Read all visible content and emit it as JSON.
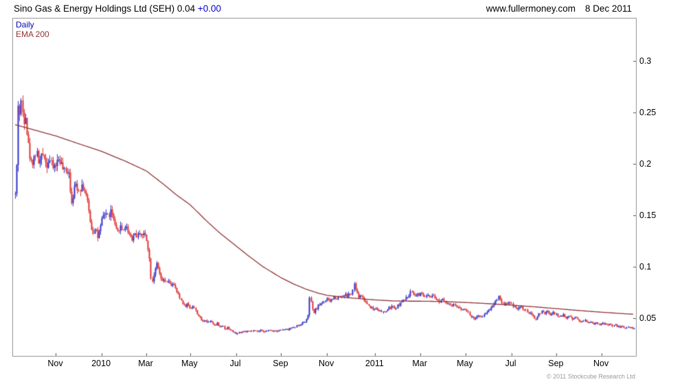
{
  "header": {
    "title": "Sino Gas & Energy Holdings Ltd (SEH) 0.04",
    "change": "+0.00",
    "website": "www.fullermoney.com",
    "date": "8 Dec 2011"
  },
  "legend": {
    "daily": "Daily",
    "ema": "EMA 200"
  },
  "footer": {
    "copyright": "© 2011 Stockcube Research Ltd"
  },
  "colors": {
    "up": "#2f2fc8",
    "down": "#e03030",
    "ema": "#8f3333",
    "quote_blue": "#0000cc",
    "legend_daily": "#0000bb",
    "border": "#999999",
    "tick": "#555555",
    "muted": "#999999"
  },
  "chart_data": {
    "type": "candlestick-with-ema",
    "title": "Sino Gas & Energy Holdings Ltd (SEH)",
    "last_price": "0.04",
    "change": "+0.00",
    "interval": "Daily",
    "overlay": "EMA 200",
    "x_axis": {
      "labels": [
        "Nov",
        "2010",
        "Mar",
        "May",
        "Jul",
        "Sep",
        "Nov",
        "2011",
        "Mar",
        "May",
        "Jul",
        "Sep",
        "Nov"
      ],
      "positions_t": [
        0.066,
        0.14,
        0.212,
        0.283,
        0.357,
        0.43,
        0.504,
        0.582,
        0.655,
        0.728,
        0.802,
        0.875,
        0.948
      ]
    },
    "y_axis": {
      "side": "right",
      "ticks": [
        0.3,
        0.25,
        0.2,
        0.15,
        0.1,
        0.05
      ],
      "range": [
        0.013,
        0.3413
      ]
    },
    "price_keypoints": [
      [
        0.0,
        0.17
      ],
      [
        0.003,
        0.205
      ],
      [
        0.005,
        0.27
      ],
      [
        0.007,
        0.248
      ],
      [
        0.01,
        0.262
      ],
      [
        0.013,
        0.24
      ],
      [
        0.016,
        0.252
      ],
      [
        0.019,
        0.228
      ],
      [
        0.022,
        0.212
      ],
      [
        0.026,
        0.2
      ],
      [
        0.03,
        0.206
      ],
      [
        0.034,
        0.212
      ],
      [
        0.038,
        0.2
      ],
      [
        0.042,
        0.206
      ],
      [
        0.046,
        0.212
      ],
      [
        0.05,
        0.198
      ],
      [
        0.055,
        0.205
      ],
      [
        0.06,
        0.196
      ],
      [
        0.066,
        0.2
      ],
      [
        0.071,
        0.206
      ],
      [
        0.076,
        0.196
      ],
      [
        0.081,
        0.19
      ],
      [
        0.086,
        0.196
      ],
      [
        0.09,
        0.162
      ],
      [
        0.094,
        0.172
      ],
      [
        0.098,
        0.18
      ],
      [
        0.103,
        0.175
      ],
      [
        0.108,
        0.18
      ],
      [
        0.113,
        0.172
      ],
      [
        0.117,
        0.16
      ],
      [
        0.121,
        0.146
      ],
      [
        0.125,
        0.132
      ],
      [
        0.129,
        0.14
      ],
      [
        0.133,
        0.128
      ],
      [
        0.137,
        0.136
      ],
      [
        0.141,
        0.148
      ],
      [
        0.146,
        0.153
      ],
      [
        0.15,
        0.148
      ],
      [
        0.154,
        0.154
      ],
      [
        0.158,
        0.147
      ],
      [
        0.161,
        0.138
      ],
      [
        0.165,
        0.132
      ],
      [
        0.169,
        0.14
      ],
      [
        0.173,
        0.135
      ],
      [
        0.177,
        0.14
      ],
      [
        0.181,
        0.136
      ],
      [
        0.185,
        0.131
      ],
      [
        0.189,
        0.127
      ],
      [
        0.193,
        0.133
      ],
      [
        0.197,
        0.129
      ],
      [
        0.201,
        0.134
      ],
      [
        0.205,
        0.13
      ],
      [
        0.209,
        0.132
      ],
      [
        0.212,
        0.127
      ],
      [
        0.215,
        0.117
      ],
      [
        0.218,
        0.1
      ],
      [
        0.22,
        0.082
      ],
      [
        0.223,
        0.091
      ],
      [
        0.226,
        0.099
      ],
      [
        0.229,
        0.102
      ],
      [
        0.232,
        0.094
      ],
      [
        0.235,
        0.089
      ],
      [
        0.238,
        0.084
      ],
      [
        0.241,
        0.088
      ],
      [
        0.244,
        0.083
      ],
      [
        0.247,
        0.086
      ],
      [
        0.25,
        0.081
      ],
      [
        0.254,
        0.084
      ],
      [
        0.258,
        0.079
      ],
      [
        0.262,
        0.074
      ],
      [
        0.266,
        0.069
      ],
      [
        0.27,
        0.065
      ],
      [
        0.274,
        0.061
      ],
      [
        0.278,
        0.064
      ],
      [
        0.283,
        0.059
      ],
      [
        0.287,
        0.062
      ],
      [
        0.291,
        0.057
      ],
      [
        0.295,
        0.053
      ],
      [
        0.299,
        0.049
      ],
      [
        0.303,
        0.046
      ],
      [
        0.307,
        0.049
      ],
      [
        0.311,
        0.045
      ],
      [
        0.315,
        0.048
      ],
      [
        0.319,
        0.045
      ],
      [
        0.323,
        0.042
      ],
      [
        0.327,
        0.045
      ],
      [
        0.331,
        0.041
      ],
      [
        0.335,
        0.043
      ],
      [
        0.339,
        0.039
      ],
      [
        0.343,
        0.041
      ],
      [
        0.348,
        0.038
      ],
      [
        0.353,
        0.036
      ],
      [
        0.357,
        0.0345
      ],
      [
        0.363,
        0.036
      ],
      [
        0.37,
        0.037
      ],
      [
        0.377,
        0.0365
      ],
      [
        0.384,
        0.0375
      ],
      [
        0.391,
        0.0365
      ],
      [
        0.398,
        0.0375
      ],
      [
        0.405,
        0.037
      ],
      [
        0.412,
        0.038
      ],
      [
        0.419,
        0.0375
      ],
      [
        0.426,
        0.038
      ],
      [
        0.433,
        0.0385
      ],
      [
        0.44,
        0.0385
      ],
      [
        0.446,
        0.04
      ],
      [
        0.452,
        0.0415
      ],
      [
        0.458,
        0.043
      ],
      [
        0.464,
        0.045
      ],
      [
        0.469,
        0.047
      ],
      [
        0.473,
        0.05
      ],
      [
        0.476,
        0.074
      ],
      [
        0.479,
        0.059
      ],
      [
        0.482,
        0.055
      ],
      [
        0.486,
        0.059
      ],
      [
        0.49,
        0.062
      ],
      [
        0.494,
        0.064
      ],
      [
        0.498,
        0.066
      ],
      [
        0.504,
        0.068
      ],
      [
        0.508,
        0.066
      ],
      [
        0.512,
        0.068
      ],
      [
        0.516,
        0.071
      ],
      [
        0.52,
        0.069
      ],
      [
        0.524,
        0.072
      ],
      [
        0.528,
        0.07
      ],
      [
        0.532,
        0.073
      ],
      [
        0.536,
        0.071
      ],
      [
        0.54,
        0.074
      ],
      [
        0.544,
        0.072
      ],
      [
        0.548,
        0.084
      ],
      [
        0.551,
        0.074
      ],
      [
        0.555,
        0.07
      ],
      [
        0.559,
        0.072
      ],
      [
        0.563,
        0.068
      ],
      [
        0.567,
        0.065
      ],
      [
        0.571,
        0.062
      ],
      [
        0.575,
        0.06
      ],
      [
        0.579,
        0.058
      ],
      [
        0.583,
        0.06
      ],
      [
        0.588,
        0.057
      ],
      [
        0.593,
        0.055
      ],
      [
        0.598,
        0.056
      ],
      [
        0.603,
        0.059
      ],
      [
        0.608,
        0.061
      ],
      [
        0.613,
        0.059
      ],
      [
        0.618,
        0.062
      ],
      [
        0.623,
        0.065
      ],
      [
        0.628,
        0.067
      ],
      [
        0.633,
        0.07
      ],
      [
        0.638,
        0.074
      ],
      [
        0.642,
        0.077
      ],
      [
        0.645,
        0.071
      ],
      [
        0.649,
        0.074
      ],
      [
        0.653,
        0.072
      ],
      [
        0.657,
        0.074
      ],
      [
        0.661,
        0.07
      ],
      [
        0.665,
        0.072
      ],
      [
        0.67,
        0.069
      ],
      [
        0.675,
        0.071
      ],
      [
        0.68,
        0.068
      ],
      [
        0.685,
        0.066
      ],
      [
        0.69,
        0.069
      ],
      [
        0.695,
        0.066
      ],
      [
        0.7,
        0.064
      ],
      [
        0.705,
        0.061
      ],
      [
        0.71,
        0.063
      ],
      [
        0.715,
        0.06
      ],
      [
        0.72,
        0.058
      ],
      [
        0.725,
        0.06
      ],
      [
        0.728,
        0.058
      ],
      [
        0.732,
        0.055
      ],
      [
        0.737,
        0.051
      ],
      [
        0.742,
        0.049
      ],
      [
        0.747,
        0.052
      ],
      [
        0.752,
        0.05
      ],
      [
        0.757,
        0.053
      ],
      [
        0.762,
        0.056
      ],
      [
        0.767,
        0.059
      ],
      [
        0.772,
        0.063
      ],
      [
        0.777,
        0.067
      ],
      [
        0.781,
        0.071
      ],
      [
        0.785,
        0.066
      ],
      [
        0.79,
        0.063
      ],
      [
        0.795,
        0.065
      ],
      [
        0.802,
        0.063
      ],
      [
        0.807,
        0.061
      ],
      [
        0.812,
        0.059
      ],
      [
        0.817,
        0.061
      ],
      [
        0.822,
        0.058
      ],
      [
        0.827,
        0.056
      ],
      [
        0.832,
        0.054
      ],
      [
        0.837,
        0.051
      ],
      [
        0.841,
        0.048
      ],
      [
        0.845,
        0.053
      ],
      [
        0.85,
        0.056
      ],
      [
        0.855,
        0.054
      ],
      [
        0.86,
        0.056
      ],
      [
        0.865,
        0.053
      ],
      [
        0.87,
        0.055
      ],
      [
        0.875,
        0.053
      ],
      [
        0.88,
        0.051
      ],
      [
        0.885,
        0.053
      ],
      [
        0.89,
        0.05
      ],
      [
        0.895,
        0.052
      ],
      [
        0.9,
        0.049
      ],
      [
        0.905,
        0.051
      ],
      [
        0.91,
        0.048
      ],
      [
        0.915,
        0.046
      ],
      [
        0.92,
        0.048
      ],
      [
        0.925,
        0.045
      ],
      [
        0.93,
        0.047
      ],
      [
        0.935,
        0.044
      ],
      [
        0.94,
        0.046
      ],
      [
        0.945,
        0.043
      ],
      [
        0.95,
        0.045
      ],
      [
        0.955,
        0.043
      ],
      [
        0.96,
        0.044
      ],
      [
        0.965,
        0.042
      ],
      [
        0.97,
        0.043
      ],
      [
        0.975,
        0.041
      ],
      [
        0.98,
        0.042
      ],
      [
        0.985,
        0.04
      ],
      [
        0.99,
        0.041
      ],
      [
        1.0,
        0.04
      ]
    ],
    "ema_keypoints": [
      [
        0.0,
        0.238
      ],
      [
        0.03,
        0.233
      ],
      [
        0.066,
        0.227
      ],
      [
        0.1,
        0.22
      ],
      [
        0.14,
        0.212
      ],
      [
        0.18,
        0.202
      ],
      [
        0.212,
        0.193
      ],
      [
        0.24,
        0.18
      ],
      [
        0.26,
        0.17
      ],
      [
        0.283,
        0.16
      ],
      [
        0.31,
        0.144
      ],
      [
        0.33,
        0.133
      ],
      [
        0.357,
        0.12
      ],
      [
        0.38,
        0.109
      ],
      [
        0.4,
        0.1
      ],
      [
        0.43,
        0.089
      ],
      [
        0.45,
        0.083
      ],
      [
        0.47,
        0.078
      ],
      [
        0.49,
        0.074
      ],
      [
        0.504,
        0.072
      ],
      [
        0.53,
        0.07
      ],
      [
        0.56,
        0.0685
      ],
      [
        0.582,
        0.0675
      ],
      [
        0.61,
        0.0665
      ],
      [
        0.64,
        0.0662
      ],
      [
        0.655,
        0.0662
      ],
      [
        0.68,
        0.066
      ],
      [
        0.7,
        0.0657
      ],
      [
        0.728,
        0.065
      ],
      [
        0.76,
        0.064
      ],
      [
        0.8,
        0.0625
      ],
      [
        0.84,
        0.0607
      ],
      [
        0.875,
        0.059
      ],
      [
        0.91,
        0.0572
      ],
      [
        0.948,
        0.0555
      ],
      [
        0.98,
        0.0542
      ],
      [
        1.0,
        0.0535
      ]
    ],
    "render": {
      "bars": 430,
      "seed": 42,
      "noise": 0.022,
      "wick": 0.028
    }
  }
}
